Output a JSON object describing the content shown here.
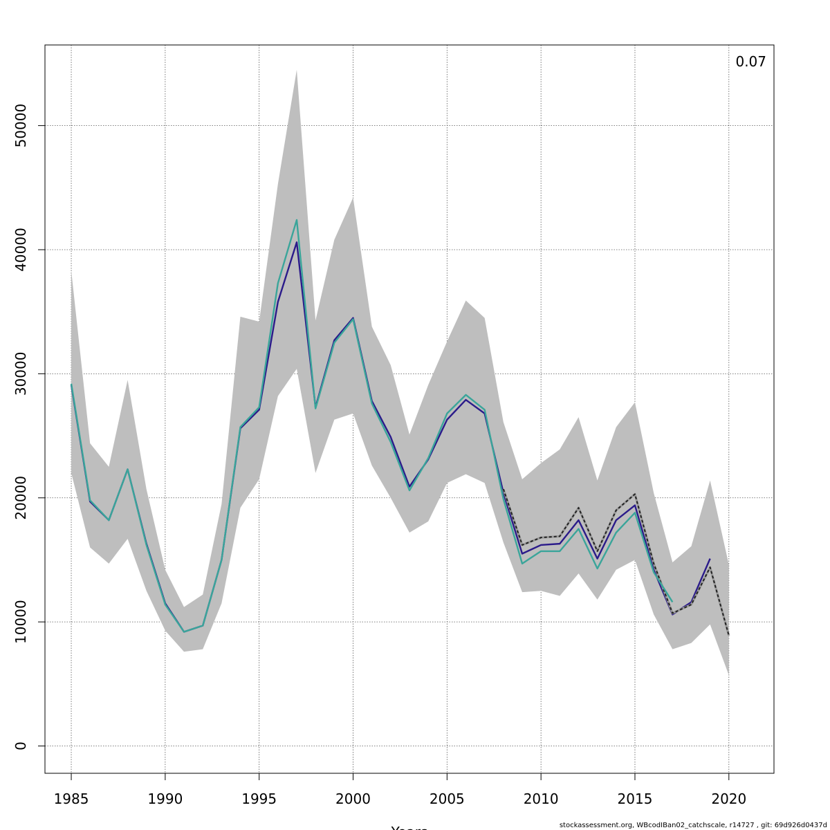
{
  "chart_data": {
    "type": "line",
    "title": "",
    "corner_label": "0.07",
    "xlabel": "Years",
    "ylabel": "",
    "xlim": [
      1983.6,
      2022.4
    ],
    "ylim": [
      -2200,
      56500
    ],
    "x_ticks": [
      1985,
      1990,
      1995,
      2000,
      2005,
      2010,
      2015,
      2020
    ],
    "y_ticks": [
      0,
      10000,
      20000,
      30000,
      40000,
      50000
    ],
    "grid": true,
    "legend": "none",
    "band": {
      "x": [
        1985,
        1986,
        1987,
        1988,
        1989,
        1990,
        1991,
        1992,
        1993,
        1994,
        1995,
        1996,
        1997,
        1998,
        1999,
        2000,
        2001,
        2002,
        2003,
        2004,
        2005,
        2006,
        2007,
        2008,
        2009,
        2010,
        2011,
        2012,
        2013,
        2014,
        2015,
        2016,
        2017,
        2018,
        2019,
        2020
      ],
      "lower": [
        22000,
        16000,
        14700,
        16700,
        12500,
        9300,
        7600,
        7800,
        11500,
        19200,
        21500,
        28200,
        30400,
        22000,
        26300,
        26800,
        22600,
        20000,
        17200,
        18100,
        21200,
        21900,
        21200,
        16400,
        12400,
        12500,
        12100,
        13900,
        11800,
        14200,
        15000,
        10600,
        7800,
        8300,
        9800,
        5700
      ],
      "upper": [
        38300,
        24400,
        22500,
        29500,
        20700,
        14200,
        11200,
        12200,
        19500,
        34600,
        34200,
        45300,
        54500,
        34300,
        40800,
        44200,
        33800,
        30700,
        25100,
        29100,
        32600,
        35900,
        34500,
        26100,
        21500,
        22800,
        23900,
        26500,
        21400,
        25700,
        27700,
        20400,
        14800,
        16100,
        21400,
        14600
      ],
      "color": "#bebebe"
    },
    "series": [
      {
        "color": "#2b1b8a",
        "style": "solid",
        "x": [
          1985,
          1986,
          1987,
          1988,
          1989,
          1990,
          1991,
          1992,
          1993,
          1994,
          1995,
          1996,
          1997,
          1998,
          1999,
          2000,
          2001,
          2002,
          2003,
          2004,
          2005,
          2006,
          2007,
          2008,
          2009,
          2010,
          2011,
          2012,
          2013,
          2014,
          2015,
          2016,
          2017,
          2018,
          2019
        ],
        "y": [
          29100,
          19700,
          18200,
          22300,
          16300,
          11500,
          9200,
          9700,
          15000,
          25600,
          27100,
          35800,
          40600,
          27300,
          32700,
          34500,
          27800,
          24900,
          20900,
          23100,
          26300,
          27900,
          26800,
          20400,
          15500,
          16200,
          16300,
          18200,
          15100,
          18200,
          19400,
          14200,
          10600,
          11600,
          15100
        ]
      },
      {
        "color": "#222222",
        "style": "dashed",
        "x": [
          2008,
          2009,
          2010,
          2011,
          2012,
          2013,
          2014,
          2015,
          2016,
          2017,
          2018,
          2019,
          2020
        ],
        "y": [
          20700,
          16200,
          16800,
          16900,
          19200,
          15700,
          19000,
          20300,
          14700,
          10700,
          11400,
          14400,
          8900
        ]
      },
      {
        "color": "#3aa59a",
        "style": "solid",
        "x": [
          1985,
          1986,
          1987,
          1988,
          1989,
          1990,
          1991,
          1992,
          1993,
          1994,
          1995,
          1996,
          1997,
          1998,
          1999,
          2000,
          2001,
          2002,
          2003,
          2004,
          2005,
          2006,
          2007,
          2008,
          2009,
          2010,
          2011,
          2012,
          2013,
          2014,
          2015,
          2016,
          2017
        ],
        "y": [
          29200,
          19800,
          18200,
          22300,
          16200,
          11400,
          9200,
          9700,
          15000,
          25700,
          27300,
          37300,
          42400,
          27200,
          32500,
          34400,
          27600,
          24500,
          20600,
          23200,
          26800,
          28300,
          27100,
          19900,
          14700,
          15700,
          15700,
          17500,
          14300,
          17200,
          18800,
          14000,
          11600
        ]
      }
    ]
  },
  "footer_text": "stockassessment.org, WBcodIBan02_catchscale, r14727 , git: 69d926d0437d"
}
